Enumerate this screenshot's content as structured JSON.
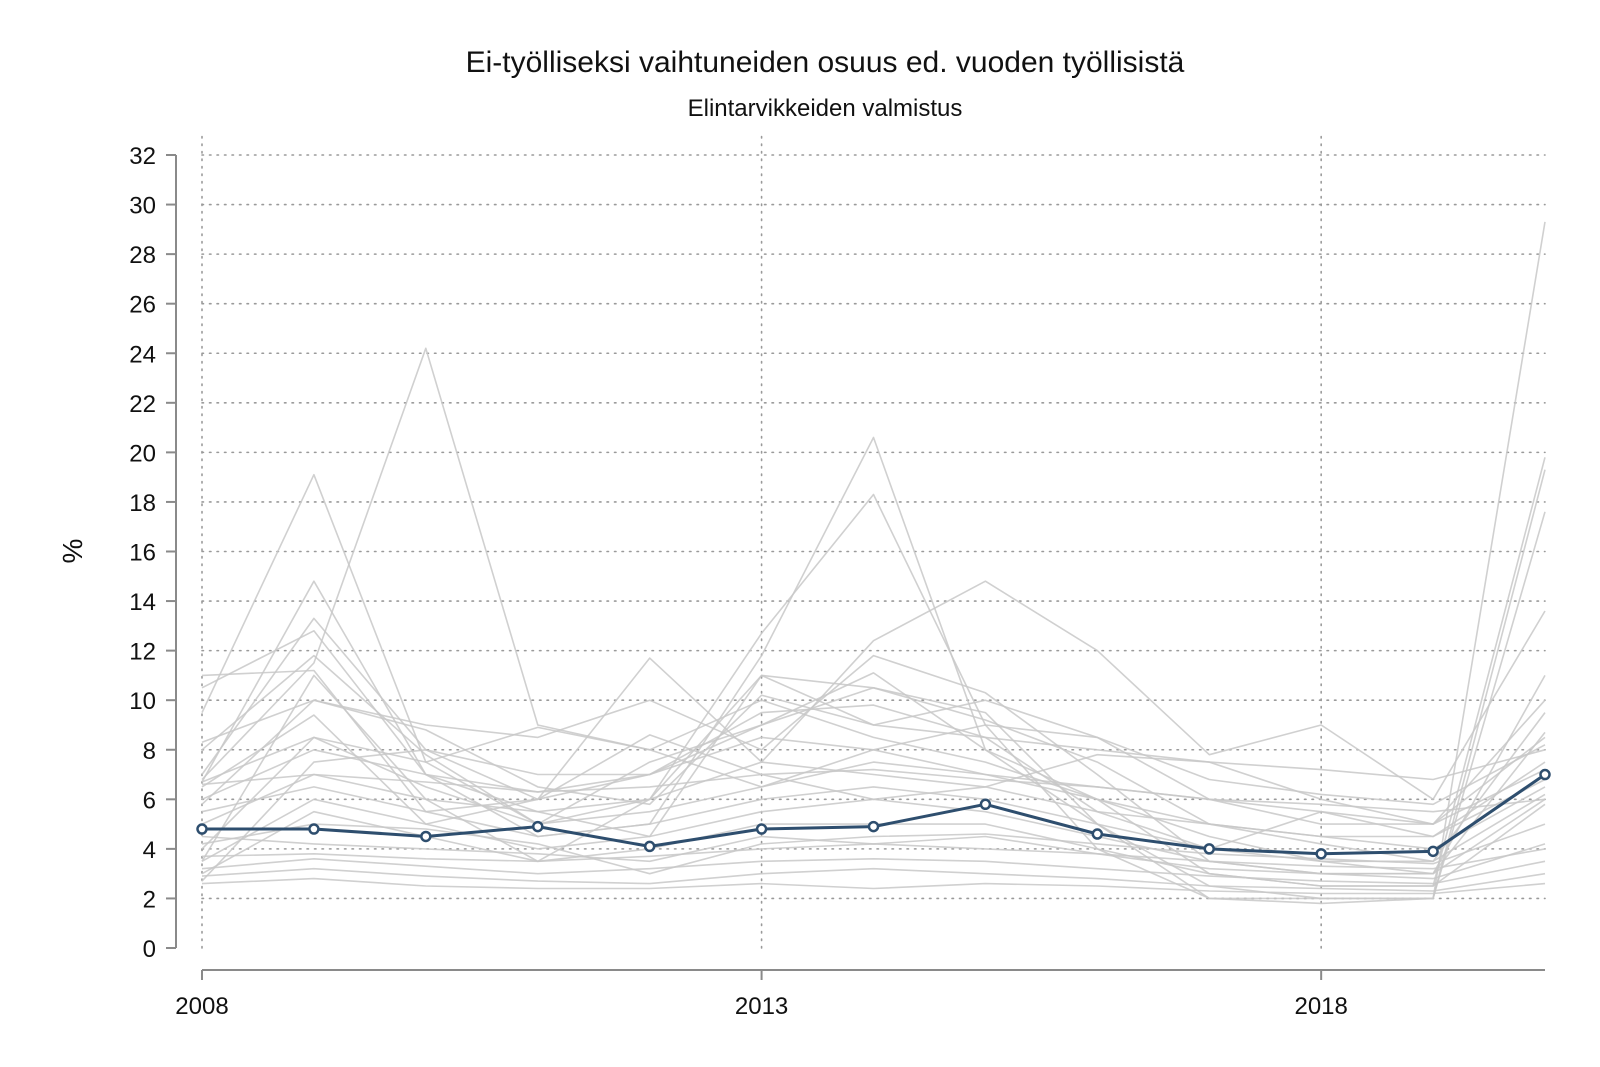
{
  "chart_data": {
    "type": "line",
    "title": "Ei-työlliseksi vaihtuneiden osuus ed. vuoden työllisistä",
    "subtitle": "Elintarvikkeiden valmistus",
    "xlabel": "",
    "ylabel": "%",
    "xlim": [
      2008,
      2020
    ],
    "ylim": [
      0,
      32
    ],
    "x_ticks": [
      2008,
      2013,
      2018
    ],
    "y_ticks": [
      0,
      2,
      4,
      6,
      8,
      10,
      12,
      14,
      16,
      18,
      20,
      22,
      24,
      26,
      28,
      30,
      32
    ],
    "grid": true,
    "legend": "none",
    "x": [
      2008,
      2009,
      2010,
      2011,
      2012,
      2013,
      2014,
      2015,
      2016,
      2017,
      2018,
      2019,
      2020
    ],
    "highlight_color": "#2e4e6e",
    "background_color": "#c8c8c8",
    "highlight_series": {
      "values": [
        4.8,
        4.8,
        4.5,
        4.9,
        4.1,
        4.8,
        4.9,
        5.8,
        4.6,
        4.0,
        3.8,
        3.9,
        7.0
      ]
    },
    "background_series": [
      {
        "values": [
          9.5,
          19.1,
          7.5,
          5.0,
          6.0,
          11.0,
          10.5,
          9.5,
          5.0,
          2.5,
          2.0,
          2.0,
          29.3
        ]
      },
      {
        "values": [
          6.8,
          11.5,
          24.2,
          9.0,
          8.0,
          10.0,
          8.5,
          7.5,
          6.0,
          3.0,
          2.5,
          2.5,
          19.8
        ]
      },
      {
        "values": [
          6.7,
          14.8,
          7.0,
          4.5,
          5.0,
          11.8,
          20.6,
          8.0,
          5.0,
          2.0,
          1.8,
          2.0,
          19.3
        ]
      },
      {
        "values": [
          3.5,
          11.0,
          6.0,
          3.5,
          6.0,
          12.7,
          18.3,
          9.0,
          4.0,
          2.0,
          2.0,
          2.0,
          17.6
        ]
      },
      {
        "values": [
          7.0,
          13.3,
          8.0,
          6.0,
          11.7,
          7.5,
          12.4,
          14.8,
          12.0,
          7.8,
          9.0,
          6.0,
          13.6
        ]
      },
      {
        "values": [
          8.3,
          10.0,
          9.0,
          8.5,
          10.0,
          8.0,
          11.8,
          10.3,
          7.0,
          3.5,
          3.0,
          3.0,
          11.0
        ]
      },
      {
        "values": [
          10.5,
          12.8,
          7.0,
          5.5,
          4.5,
          11.0,
          9.0,
          8.5,
          8.0,
          7.5,
          6.0,
          5.0,
          10.0
        ]
      },
      {
        "values": [
          11.0,
          11.2,
          5.5,
          6.0,
          7.0,
          9.0,
          11.1,
          8.0,
          6.0,
          4.5,
          3.5,
          3.0,
          8.7
        ]
      },
      {
        "values": [
          6.7,
          8.5,
          7.5,
          8.9,
          8.0,
          6.5,
          8.0,
          9.0,
          8.5,
          6.0,
          5.5,
          5.0,
          8.5
        ]
      },
      {
        "values": [
          6.5,
          9.4,
          5.0,
          6.0,
          8.6,
          7.0,
          6.0,
          6.5,
          7.8,
          7.5,
          7.2,
          6.8,
          8.0
        ]
      },
      {
        "values": [
          2.7,
          7.5,
          8.0,
          7.0,
          7.0,
          9.5,
          9.8,
          8.5,
          5.5,
          4.0,
          5.5,
          4.5,
          7.5
        ]
      },
      {
        "values": [
          6.0,
          8.0,
          7.0,
          6.3,
          7.0,
          8.5,
          8.0,
          7.0,
          6.5,
          6.0,
          5.0,
          5.0,
          7.2
        ]
      },
      {
        "values": [
          5.0,
          7.0,
          6.0,
          5.5,
          6.0,
          7.5,
          7.0,
          6.5,
          5.5,
          5.0,
          4.5,
          4.5,
          6.8
        ]
      },
      {
        "values": [
          4.0,
          8.5,
          6.5,
          5.0,
          5.5,
          6.5,
          7.5,
          7.0,
          6.0,
          5.0,
          4.5,
          4.0,
          6.5
        ]
      },
      {
        "values": [
          5.5,
          6.5,
          5.5,
          4.5,
          5.0,
          6.0,
          6.5,
          6.0,
          5.0,
          4.0,
          3.5,
          3.5,
          6.2
        ]
      },
      {
        "values": [
          3.5,
          6.0,
          5.0,
          4.0,
          4.5,
          5.5,
          6.0,
          5.5,
          4.5,
          3.5,
          3.0,
          3.0,
          6.0
        ]
      },
      {
        "values": [
          3.0,
          5.5,
          4.5,
          3.5,
          4.0,
          5.0,
          5.0,
          5.0,
          4.0,
          3.0,
          2.5,
          2.5,
          5.8
        ]
      },
      {
        "values": [
          4.5,
          4.2,
          4.0,
          3.8,
          3.5,
          4.5,
          4.2,
          4.5,
          3.8,
          3.2,
          3.0,
          2.8,
          4.2
        ]
      },
      {
        "values": [
          3.2,
          3.6,
          3.3,
          3.0,
          3.2,
          3.5,
          3.6,
          3.5,
          3.2,
          2.9,
          2.7,
          2.6,
          3.5
        ]
      },
      {
        "values": [
          2.9,
          3.2,
          2.9,
          2.7,
          2.6,
          3.0,
          3.2,
          3.0,
          2.8,
          2.5,
          2.4,
          2.3,
          3.0
        ]
      },
      {
        "values": [
          2.6,
          2.8,
          2.5,
          2.4,
          2.4,
          2.6,
          2.4,
          2.6,
          2.5,
          2.3,
          2.2,
          2.2,
          2.6
        ]
      },
      {
        "values": [
          6.6,
          7.0,
          6.7,
          6.3,
          6.5,
          7.0,
          7.2,
          6.8,
          6.5,
          6.0,
          5.8,
          5.5,
          6.0
        ]
      },
      {
        "values": [
          3.7,
          3.8,
          3.6,
          3.5,
          3.7,
          4.0,
          4.2,
          4.0,
          3.8,
          3.5,
          3.3,
          3.2,
          4.0
        ]
      },
      {
        "values": [
          8.0,
          11.8,
          7.8,
          5.0,
          7.5,
          9.0,
          10.5,
          9.2,
          7.5,
          5.0,
          4.2,
          3.5,
          9.5
        ]
      },
      {
        "values": [
          5.8,
          10.0,
          8.8,
          6.5,
          5.8,
          10.2,
          9.0,
          10.0,
          8.5,
          6.8,
          6.2,
          5.8,
          8.2
        ]
      },
      {
        "values": [
          4.2,
          5.0,
          4.8,
          4.2,
          3.0,
          4.2,
          4.5,
          4.6,
          4.2,
          3.8,
          3.6,
          3.4,
          5.0
        ]
      }
    ]
  }
}
